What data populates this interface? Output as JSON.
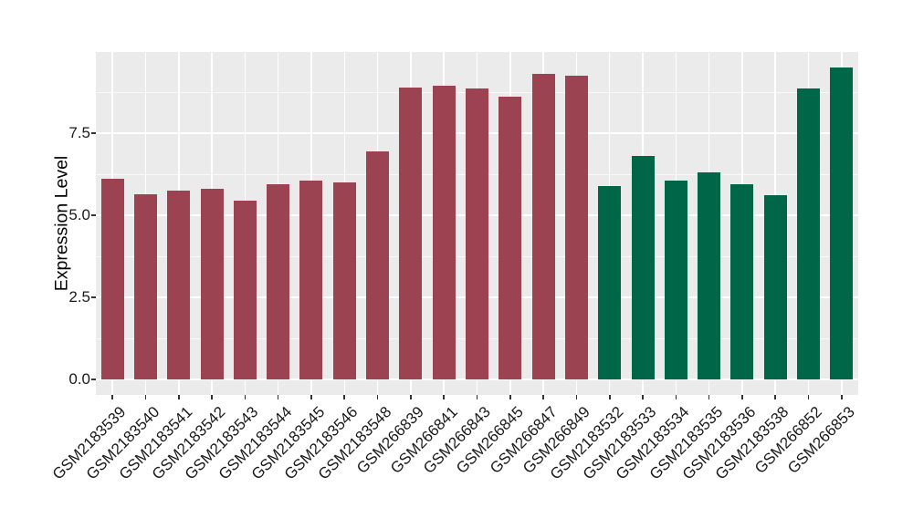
{
  "figure": {
    "background": "#FFFFFF",
    "panel_background": "#EBEBEB",
    "gridline_color": "#FFFFFF",
    "tick_color": "#333333",
    "tick_label_color": "#1A1A1A",
    "axis_title_color": "#000000"
  },
  "chart_data": {
    "type": "bar",
    "title": "",
    "xlabel": "",
    "ylabel": "Expression Level",
    "legend": "none",
    "grid": {
      "horizontal_major": true,
      "horizontal_minor": true,
      "vertical_major_per_category": true
    },
    "ylim": [
      -0.47,
      9.97
    ],
    "yticks": {
      "values": [
        0,
        2.5,
        5,
        7.5
      ],
      "labels": [
        "0.0",
        "2.5",
        "5.0",
        "7.5"
      ]
    },
    "yticks_minor": [
      1.25,
      3.75,
      6.25,
      8.75
    ],
    "group_colors": {
      "group1": "#9B4351",
      "group2": "#006648"
    },
    "categories": [
      "GSM2183539",
      "GSM2183540",
      "GSM2183541",
      "GSM2183542",
      "GSM2183543",
      "GSM2183544",
      "GSM2183545",
      "GSM2183546",
      "GSM2183548",
      "GSM266839",
      "GSM266841",
      "GSM266843",
      "GSM266845",
      "GSM266847",
      "GSM266849",
      "GSM2183532",
      "GSM2183533",
      "GSM2183534",
      "GSM2183535",
      "GSM2183536",
      "GSM2183538",
      "GSM266852",
      "GSM266853"
    ],
    "values": [
      6.1,
      5.65,
      5.75,
      5.8,
      5.45,
      5.95,
      6.05,
      6.0,
      6.95,
      8.9,
      8.95,
      8.85,
      8.6,
      9.3,
      9.25,
      5.9,
      6.8,
      6.05,
      6.3,
      5.95,
      5.6,
      8.85,
      9.5
    ],
    "bar_groups": [
      "group1",
      "group1",
      "group1",
      "group1",
      "group1",
      "group1",
      "group1",
      "group1",
      "group1",
      "group1",
      "group1",
      "group1",
      "group1",
      "group1",
      "group1",
      "group2",
      "group2",
      "group2",
      "group2",
      "group2",
      "group2",
      "group2",
      "group2"
    ]
  }
}
